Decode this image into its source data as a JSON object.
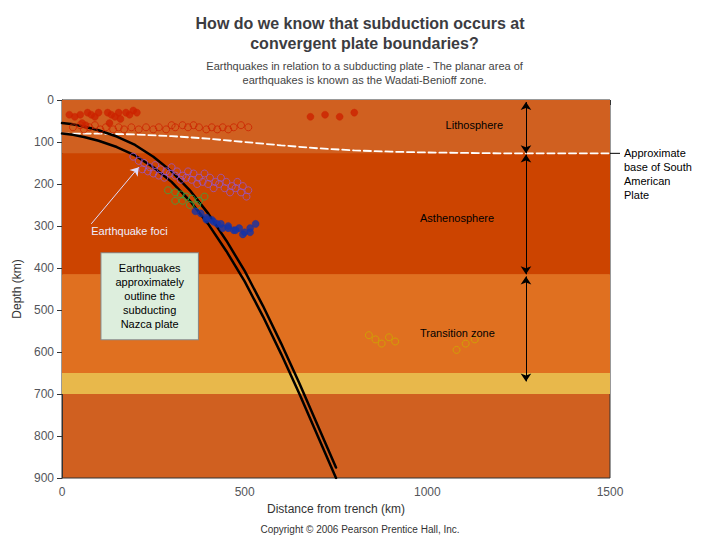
{
  "chart_data": {
    "type": "scatter",
    "title": "How do we know that subduction occurs at\n  convergent plate boundaries?",
    "subtitle": "   Earthquakes in relation to a subducting plate - The planar area of\n   earthquakes is known as the Wadati-Benioff zone.",
    "x_label": "Distance from trench (km)",
    "y_label": "Depth (km)",
    "xlim": [
      0,
      1500
    ],
    "xticks": [
      0,
      500,
      1000,
      1500
    ],
    "ylim": [
      900,
      0
    ],
    "yticks": [
      0,
      100,
      200,
      300,
      400,
      500,
      600,
      700,
      800,
      900
    ],
    "grid": false,
    "background": "#D06020",
    "bands": [
      {
        "from": 0,
        "to": 127,
        "color": "#D06020"
      },
      {
        "from": 127,
        "to": 415,
        "color": "#CC4400"
      },
      {
        "from": 415,
        "to": 650,
        "color": "#E07020"
      },
      {
        "from": 650,
        "to": 700,
        "color": "#E8B84B"
      }
    ],
    "series": [
      {
        "type": "line",
        "line_style": "dashed",
        "color": "#FFFFFF",
        "x": [
          0,
          100,
          200,
          300,
          400,
          500,
          600,
          700,
          800,
          900,
          1000,
          1100,
          1200,
          1300,
          1400,
          1500
        ],
        "values": [
          80,
          80,
          82,
          86,
          92,
          100,
          108,
          115,
          120,
          123,
          125,
          126,
          127,
          127,
          127,
          127
        ]
      },
      {
        "type": "line",
        "line_style": "solid",
        "color": "#000000",
        "x": [
          0,
          30,
          60,
          100,
          150,
          200,
          250,
          300,
          350,
          400,
          450,
          500,
          550,
          600,
          650,
          700,
          750
        ],
        "values": [
          80,
          83,
          88,
          97,
          112,
          132,
          160,
          195,
          240,
          295,
          360,
          432,
          515,
          605,
          700,
          800,
          900
        ]
      },
      {
        "type": "line",
        "line_style": "solid",
        "color": "#000000",
        "x": [
          0,
          30,
          60,
          100,
          150,
          200,
          250,
          300,
          350,
          400,
          450,
          500,
          550,
          600,
          650,
          700,
          750
        ],
        "values": [
          55,
          58,
          63,
          72,
          87,
          107,
          135,
          170,
          215,
          270,
          335,
          407,
          490,
          580,
          675,
          775,
          875
        ]
      },
      {
        "type": "scatter",
        "marker": "circle",
        "color": "#CC2200",
        "x": [
          20,
          35,
          50,
          70,
          80,
          90,
          100,
          55,
          65,
          125,
          135,
          145,
          155,
          130,
          160,
          175,
          185,
          195,
          205,
          680,
          720,
          760,
          800
        ],
        "values": [
          35,
          40,
          35,
          30,
          35,
          40,
          30,
          55,
          60,
          30,
          35,
          40,
          30,
          55,
          45,
          30,
          35,
          25,
          30,
          40,
          35,
          40,
          30
        ]
      },
      {
        "type": "scatter",
        "marker": "open",
        "color": "#CC2200",
        "x": [
          30,
          50,
          60,
          75,
          90,
          105,
          120,
          140,
          155,
          170,
          190,
          210,
          230,
          250,
          265,
          285,
          300,
          310,
          330,
          345,
          360,
          375,
          395,
          410,
          425,
          440,
          455,
          470,
          490,
          510
        ],
        "values": [
          65,
          60,
          70,
          65,
          60,
          70,
          65,
          70,
          65,
          70,
          65,
          70,
          65,
          70,
          65,
          70,
          60,
          65,
          60,
          65,
          60,
          65,
          70,
          65,
          70,
          65,
          70,
          65,
          60,
          65
        ]
      },
      {
        "type": "scatter",
        "marker": "open",
        "color": "#9955CC",
        "x": [
          195,
          210,
          225,
          240,
          255,
          270,
          285,
          300,
          315,
          330,
          345,
          360,
          375,
          390,
          405,
          420,
          435,
          450,
          465,
          480,
          495,
          510,
          220,
          235,
          250,
          265,
          280,
          295,
          310,
          325,
          340,
          355,
          370,
          385,
          400,
          415,
          430,
          445,
          460,
          475,
          490,
          505
        ],
        "values": [
          135,
          145,
          150,
          160,
          155,
          165,
          170,
          160,
          170,
          180,
          170,
          175,
          185,
          175,
          185,
          195,
          185,
          195,
          205,
          195,
          205,
          215,
          165,
          170,
          175,
          180,
          185,
          175,
          180,
          190,
          185,
          190,
          200,
          195,
          200,
          210,
          200,
          210,
          220,
          210,
          220,
          230
        ]
      },
      {
        "type": "scatter",
        "marker": "open",
        "color": "#33AA44",
        "x": [
          290,
          310,
          325,
          340,
          355,
          375,
          390,
          310,
          330,
          350,
          370
        ],
        "values": [
          215,
          220,
          225,
          230,
          235,
          240,
          230,
          240,
          240,
          250,
          250
        ]
      },
      {
        "type": "scatter",
        "marker": "circle",
        "color": "#1133AA",
        "x": [
          365,
          380,
          395,
          410,
          425,
          440,
          455,
          470,
          485,
          500,
          515,
          530,
          395,
          415,
          435,
          455,
          475,
          495,
          515
        ],
        "values": [
          265,
          270,
          280,
          285,
          295,
          305,
          300,
          310,
          305,
          315,
          305,
          295,
          285,
          290,
          295,
          305,
          310,
          320,
          315
        ]
      },
      {
        "type": "scatter",
        "marker": "open",
        "color": "#CCAA00",
        "x": [
          840,
          858,
          875,
          895,
          912,
          1080,
          1105,
          1130
        ],
        "values": [
          560,
          570,
          580,
          565,
          575,
          595,
          580,
          570
        ]
      }
    ],
    "arrows": [
      {
        "x": 1270,
        "from": 5,
        "to": 127
      },
      {
        "x": 1270,
        "from": 130,
        "to": 415
      },
      {
        "x": 1270,
        "from": 420,
        "to": 670
      }
    ],
    "annotations": [
      {
        "text": "Earthquake foci",
        "x": 80,
        "y": 295,
        "arrow_to": [
          210,
          160
        ]
      },
      {
        "text": "Lithosphere",
        "x": 1050,
        "y": 60
      },
      {
        "text": "Asthenosphere",
        "x": 980,
        "y": 280
      },
      {
        "text": "Transition zone",
        "x": 980,
        "y": 555
      },
      {
        "text": "Earthquakes\napproximately\noutline the\nsubducting\nNazca plate",
        "x": 240,
        "y": 467.5,
        "box_color": "#DDEEDD"
      },
      {
        "text": "Approximate\nbase of South\nAmerican\nPlate",
        "x": 1500,
        "y": 127
      },
      {
        "text": "Copyright © 2006 Pearson Prentice Hall, Inc."
      }
    ]
  }
}
